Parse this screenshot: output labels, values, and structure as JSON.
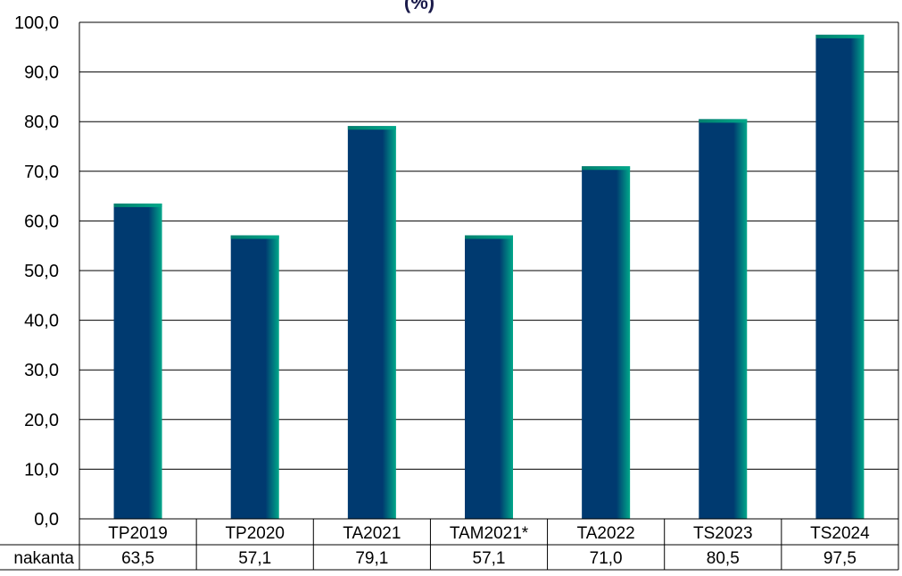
{
  "chart_data": {
    "type": "bar",
    "title": "(%)",
    "categories": [
      "TP2019",
      "TP2020",
      "TA2021",
      "TAM2021*",
      "TA2022",
      "TS2023",
      "TS2024"
    ],
    "series": [
      {
        "name": "nakanta",
        "values": [
          63.5,
          57.1,
          79.1,
          57.1,
          71.0,
          80.5,
          97.5
        ]
      }
    ],
    "value_labels": [
      "63,5",
      "57,1",
      "79,1",
      "57,1",
      "71,0",
      "80,5",
      "97,5"
    ],
    "yticks": [
      "0,0",
      "10,0",
      "20,0",
      "30,0",
      "40,0",
      "50,0",
      "60,0",
      "70,0",
      "80,0",
      "90,0",
      "100,0"
    ],
    "ylim": [
      0,
      100
    ],
    "ytick_step": 10,
    "grid": true,
    "data_table": true,
    "colors": {
      "bar_main": "#003a70",
      "bar_edge": "#00a88a",
      "grid": "#000000",
      "text": "#000000"
    }
  }
}
